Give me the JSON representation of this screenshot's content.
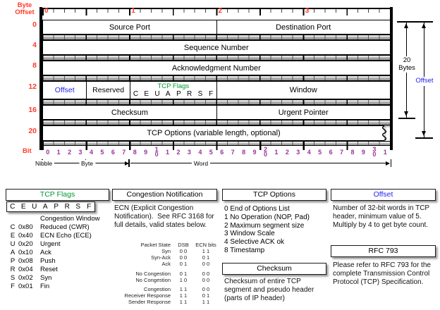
{
  "colors": {
    "red": "#ff3b2a",
    "purple": "#993399",
    "blue": "#2222ee",
    "green": "#009933"
  },
  "diagram": {
    "byte_offset_axis_label": "Byte\nOffset",
    "byte_offsets": [
      "0",
      "4",
      "8",
      "12",
      "16",
      "20"
    ],
    "top_ruler_numbers": [
      "0",
      "1",
      "2",
      "3"
    ],
    "rows": [
      {
        "cells": [
          {
            "label": "Source Port"
          },
          {
            "label": "Destination Port"
          }
        ]
      },
      {
        "cells": [
          {
            "label": "Sequence Number"
          }
        ]
      },
      {
        "cells": [
          {
            "label": "Acknowledgment Number"
          }
        ]
      },
      {
        "cells": [
          {
            "label": "Offset"
          },
          {
            "label": "Reserved"
          },
          {
            "label": "TCP Flags",
            "flags": "C E U A P R S F"
          },
          {
            "label": "Window"
          }
        ]
      },
      {
        "cells": [
          {
            "label": "Checksum"
          },
          {
            "label": "Urgent Pointer"
          }
        ]
      },
      {
        "cells": [
          {
            "label": "TCP Options (variable length, optional)"
          }
        ]
      }
    ],
    "bit_axis_label": "Bit",
    "bit_numbers": [
      "0",
      "1",
      "2",
      "3",
      "4",
      "5",
      "6",
      "7",
      "8",
      "9",
      "10",
      "1",
      "2",
      "3",
      "4",
      "5",
      "6",
      "7",
      "8",
      "9",
      "20",
      "1",
      "2",
      "3",
      "4",
      "5",
      "6",
      "7",
      "8",
      "9",
      "30",
      "1"
    ],
    "scale": {
      "nibble": "Nibble",
      "byte": "Byte",
      "word": "Word"
    },
    "right_annotations": {
      "bytes_label": "20\nBytes",
      "offset_label": "Offset"
    }
  },
  "legend": {
    "tcp_flags": {
      "title": "TCP Flags",
      "flags_box": "C E U A P R S F",
      "definitions": [
        {
          "flag": "",
          "hex": "",
          "name": "Congestion Window"
        },
        {
          "flag": "C",
          "hex": "0x80",
          "name": "Reduced (CWR)"
        },
        {
          "flag": "E",
          "hex": "0x40",
          "name": "ECN Echo (ECE)"
        },
        {
          "flag": "U",
          "hex": "0x20",
          "name": "Urgent"
        },
        {
          "flag": "A",
          "hex": "0x10",
          "name": "Ack"
        },
        {
          "flag": "P",
          "hex": "0x08",
          "name": "Push"
        },
        {
          "flag": "R",
          "hex": "0x04",
          "name": "Reset"
        },
        {
          "flag": "S",
          "hex": "0x02",
          "name": "Syn"
        },
        {
          "flag": "F",
          "hex": "0x01",
          "name": "Fin"
        }
      ]
    },
    "congestion_notification": {
      "title": "Congestion Notification",
      "description": "ECN (Explicit Congestion Notification).  See RFC 3168 for full details, valid states below.",
      "table": {
        "headers": [
          "Packet State",
          "DSB",
          "ECN bits"
        ],
        "rows": [
          [
            "Syn",
            "0 0",
            "1 1"
          ],
          [
            "Syn-Ack",
            "0 0",
            "0 1"
          ],
          [
            "Ack",
            "0 1",
            "0 0"
          ],
          null,
          [
            "No Congestion",
            "0 1",
            "0 0"
          ],
          [
            "No Congestion",
            "1 0",
            "0 0"
          ],
          null,
          [
            "Congestion",
            "1 1",
            "0 0"
          ],
          [
            "Receiver Response",
            "1 1",
            "0 1"
          ],
          [
            "Sender Response",
            "1 1",
            "1 1"
          ]
        ]
      }
    },
    "tcp_options": {
      "title": "TCP Options",
      "items": [
        "0 End of Options List",
        "1 No Operation (NOP, Pad)",
        "2 Maximum segment size",
        "3 Window Scale",
        "4 Selective ACK ok",
        "8 Timestamp"
      ]
    },
    "checksum": {
      "title": "Checksum",
      "description": "Checksum of entire TCP segment and pseudo header (parts of IP header)"
    },
    "offset": {
      "title": "Offset",
      "description": "Number of 32-bit words in TCP header, minimum value of 5.  Multiply by 4 to get byte count."
    },
    "rfc": {
      "title": "RFC 793",
      "description": "Please refer to RFC 793 for the complete Transmission Control Protocol (TCP) Specification."
    }
  }
}
